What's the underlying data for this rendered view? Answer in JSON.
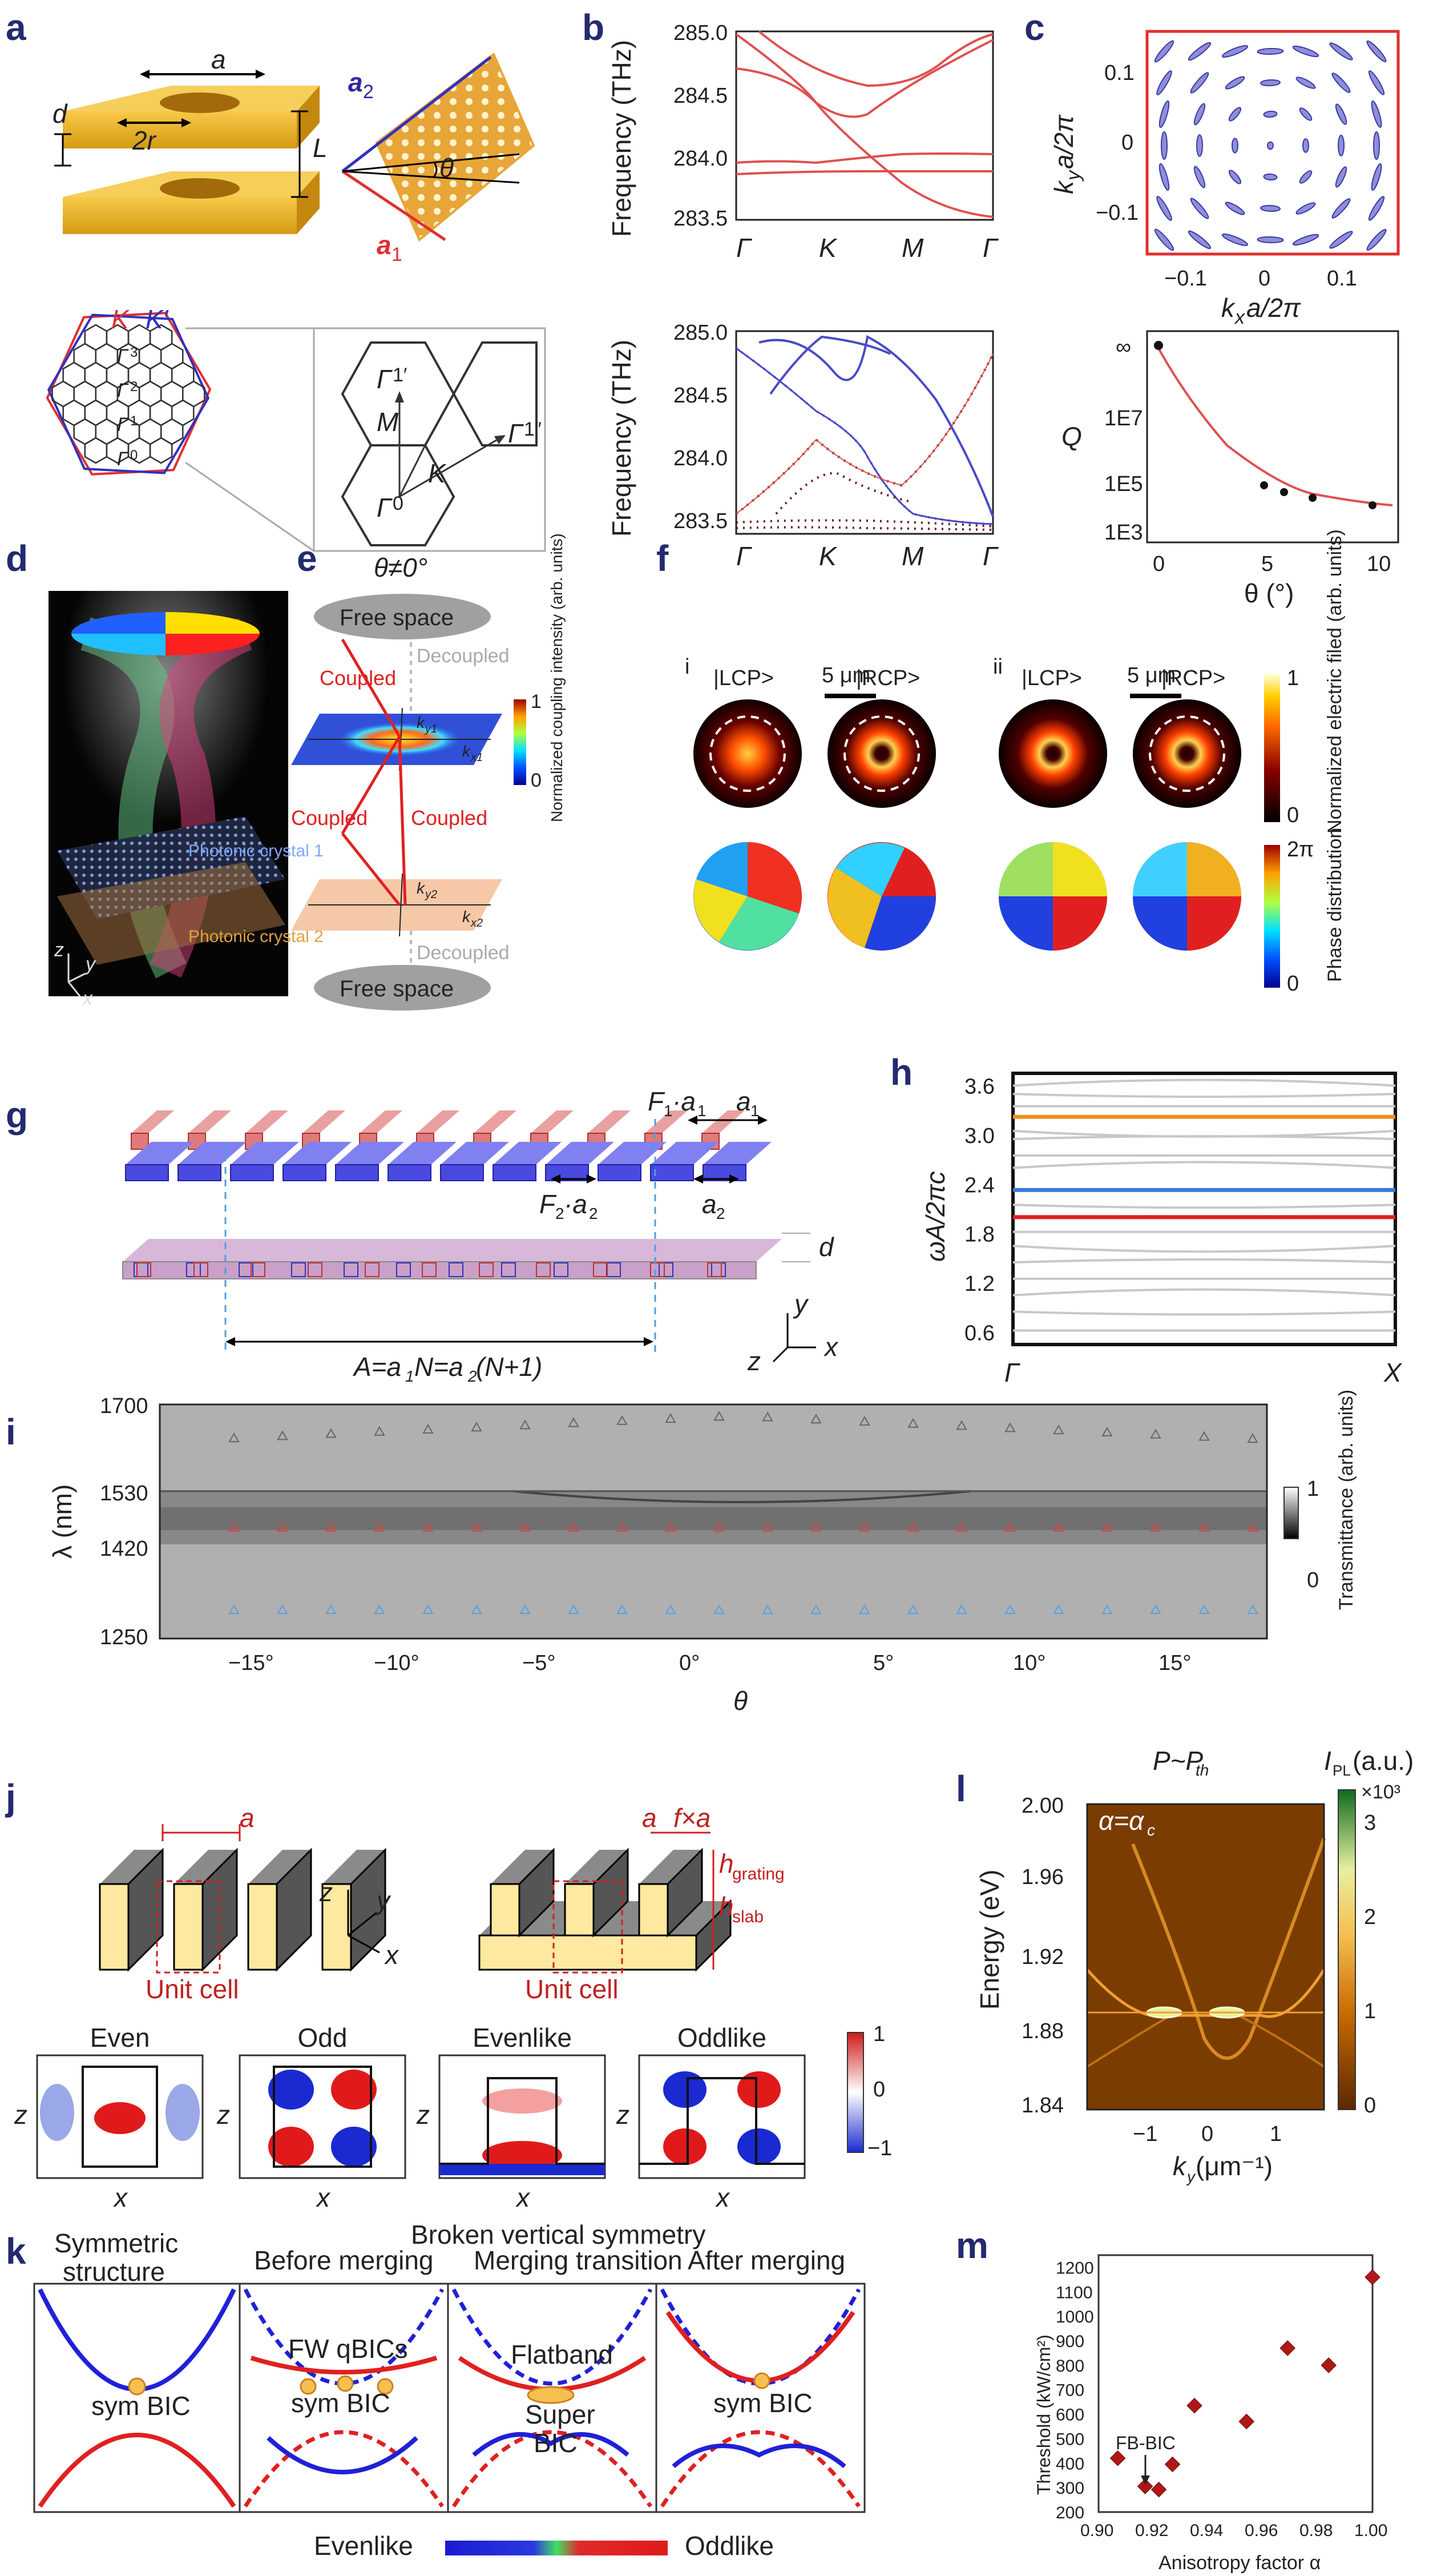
{
  "panels": {
    "a": "a",
    "b": "b",
    "c": "c",
    "d": "d",
    "e": "e",
    "f": "f",
    "g": "g",
    "h": "h",
    "i": "i",
    "j": "j",
    "k": "k",
    "l": "l",
    "m": "m"
  },
  "panel_a": {
    "d": "d",
    "a": "a",
    "two_r": "2r",
    "L": "L",
    "a2": "a",
    "a2_sub": "2",
    "a1": "a",
    "a1_sub": "1",
    "theta": "θ",
    "K": "K",
    "Kp": "K′",
    "gamma_labels": [
      "Γ",
      "Γ",
      "Γ",
      "Γ"
    ],
    "gamma_subs": [
      "3",
      "2",
      "1",
      "0"
    ],
    "zoom_labels": {
      "g1p": "Γ",
      "g1p_sup": "1′",
      "g1pp": "Γ",
      "g1pp_sup": "1″",
      "M": "M",
      "K": "K",
      "g0": "Γ",
      "g0_sup": "0"
    }
  },
  "panel_b": {
    "ylabel": "Frequency (THz)",
    "xticks": [
      "Γ",
      "K",
      "M",
      "Γ"
    ],
    "color_top": "#e05050",
    "color_blue": "#4a4ac8",
    "color_dots": "#5a1a1a"
  },
  "panel_c": {
    "ylabel_top": "k",
    "ylabel_top_sub": "y",
    "ylabel_top_rest": "a/2π",
    "xlabel_top": "k",
    "xlabel_top_sub": "x",
    "xlabel_top_rest": "a/2π",
    "top_yticks": [
      "0.1",
      "0",
      "−0.1"
    ],
    "top_xticks": [
      "−0.1",
      "0",
      "0.1"
    ],
    "ylabel_bottom": "Q",
    "xlabel_bottom": "θ (°)",
    "bottom_yticks": [
      "∞",
      "1E7",
      "1E5",
      "1E3"
    ],
    "bottom_xticks": [
      "0",
      "5",
      "10"
    ]
  },
  "panel_d": {
    "pc1": "Photonic crystal 1",
    "pc2": "Photonic crystal 2",
    "z": "z",
    "y": "y",
    "x": "x"
  },
  "panel_e": {
    "title": "θ≠0°",
    "free_space_top": "Free space",
    "free_space_bottom": "Free space",
    "decoupled_top": "Decoupled",
    "decoupled_bottom": "Decoupled",
    "coupled1": "Coupled",
    "coupled2": "Coupled",
    "coupled3": "Coupled",
    "cbar_max": "1",
    "cbar_min": "0",
    "cbar_label": "Normalized coupling intensity (arb. units)",
    "ky1": "k",
    "ky1_sub": "y1",
    "kx1": "k",
    "kx1_sub": "x1",
    "ky2": "k",
    "ky2_sub": "y2",
    "kx2": "k",
    "kx2_sub": "x2"
  },
  "panel_f": {
    "i": "i",
    "ii": "ii",
    "lcp": "|LCP>",
    "rcp": "|RCP>",
    "scale": "5 μm",
    "cbar1_max": "1",
    "cbar1_min": "0",
    "cbar1_label": "Normalized electric filed (arb. units)",
    "cbar2_max": "2π",
    "cbar2_min": "0",
    "cbar2_label": "Phase distribution"
  },
  "panel_g": {
    "F1a1": "F",
    "F1a1_sub": "1",
    "F1a1_rest": "·a",
    "F1a1_sub2": "1",
    "a1": "a",
    "a1_sub": "1",
    "F2a2": "F",
    "F2a2_sub": "2",
    "F2a2_rest": "·a",
    "F2a2_sub2": "2",
    "a2": "a",
    "a2_sub": "2",
    "d": "d",
    "A": "A=a",
    "A_sub1": "1",
    "A_mid": "N=a",
    "A_sub2": "2",
    "A_end": " (N+1)",
    "y": "y",
    "x": "x",
    "z": "z"
  },
  "panel_h": {
    "ylabel": "ωA/2πc",
    "yticks": [
      "3.6",
      "3.0",
      "2.4",
      "1.8",
      "1.2",
      "0.6"
    ],
    "xticks": [
      "Γ",
      "X"
    ],
    "chart_data": {
      "type": "line",
      "ylim": [
        0.45,
        3.75
      ],
      "highlight_bands": [
        {
          "color": "#f0901a",
          "value": 3.22
        },
        {
          "color": "#3b7ad8",
          "value": 2.33
        },
        {
          "color": "#e02020",
          "value": 2.0
        }
      ]
    }
  },
  "panel_i": {
    "ylabel": "λ (nm)",
    "yticks": [
      "1700",
      "1530",
      "1420",
      "1250"
    ],
    "xlabel": "θ",
    "xticks": [
      "−15°",
      "−10°",
      "−5°",
      "0°",
      "5°",
      "10°",
      "15°"
    ],
    "cbar_max": "1",
    "cbar_min": "0",
    "cbar_label": "Transmittance (arb. units)"
  },
  "panel_j": {
    "a": "a",
    "unit_cell": "Unit cell",
    "unit_cell2": "Unit cell",
    "a2": "a",
    "fxa": "f×a",
    "h_grating": "h",
    "h_grating_sub": "grating",
    "h_slab": "h",
    "h_slab_sub": "slab",
    "z": "z",
    "y": "y",
    "x": "x",
    "modes": [
      "Even",
      "Odd",
      "Evenlike",
      "Oddlike"
    ],
    "cbar_ticks": [
      "1",
      "0",
      "−1"
    ]
  },
  "panel_k": {
    "symmetric": "Symmetric",
    "structure": "structure",
    "broken": "Broken vertical symmetry",
    "before": "Before merging",
    "transition": "Merging transition",
    "after": "After merging",
    "symbic1": "sym BIC",
    "fw": "FW qBICs",
    "symbic2": "sym BIC",
    "flatband": "Flatband",
    "super": "Super",
    "bic": "BIC",
    "symbic3": "sym BIC",
    "evenlike": "Evenlike",
    "oddlike": "Oddlike"
  },
  "panel_l": {
    "title": "P~P",
    "title_sub": "th",
    "alpha": "α=α",
    "alpha_sub": "c",
    "ylabel": "Energy (eV)",
    "yticks": [
      "2.00",
      "1.96",
      "1.92",
      "1.88",
      "1.84"
    ],
    "xlabel": "k",
    "xlabel_sub": "y",
    "xlabel_rest": " (μm⁻¹)",
    "xticks": [
      "−1",
      "0",
      "1"
    ],
    "cbar_title": "I",
    "cbar_title_sub": "PL",
    "cbar_title_rest": " (a.u.)",
    "cbar_exp": "×10³",
    "cbar_ticks": [
      "3",
      "2",
      "1",
      "0"
    ]
  },
  "panel_m": {
    "ylabel": "Threshold (kW/cm²)",
    "xlabel": "Anisotropy factor α",
    "annotation": "FB-BIC",
    "chart_data": {
      "type": "scatter",
      "xlim": [
        0.9,
        1.0
      ],
      "ylim": [
        200,
        1250
      ],
      "xticks": [
        "0.90",
        "0.92",
        "0.94",
        "0.96",
        "0.98",
        "1.00"
      ],
      "yticks": [
        "200",
        "300",
        "400",
        "500",
        "600",
        "700",
        "800",
        "900",
        "1000",
        "1100",
        "1200"
      ],
      "x": [
        0.907,
        0.917,
        0.922,
        0.927,
        0.935,
        0.954,
        0.969,
        0.984,
        1.0
      ],
      "y": [
        420,
        305,
        292,
        395,
        635,
        570,
        870,
        800,
        1160
      ],
      "color": "#b01818"
    }
  }
}
